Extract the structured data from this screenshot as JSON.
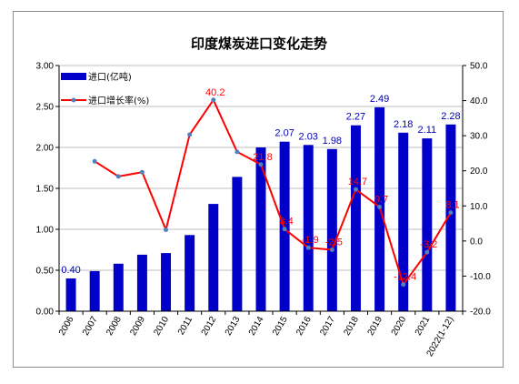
{
  "chart_data": {
    "type": "bar",
    "title": "印度煤炭进口变化走势",
    "categories": [
      "2006",
      "2007",
      "2008",
      "2009",
      "2010",
      "2011",
      "2012",
      "2013",
      "2014",
      "2015",
      "2016",
      "2017",
      "2018",
      "2019",
      "2020",
      "2021",
      "2022(1-12)"
    ],
    "series": [
      {
        "name": "进口(亿吨)",
        "type": "bar",
        "axis": "left",
        "color": "#0000c8",
        "values": [
          0.4,
          0.49,
          0.58,
          0.69,
          0.71,
          0.93,
          1.31,
          1.64,
          2.0,
          2.07,
          2.03,
          1.98,
          2.27,
          2.49,
          2.18,
          2.11,
          2.28
        ],
        "labels": [
          "0.40",
          "",
          "",
          "",
          "",
          "",
          "",
          "",
          "",
          "2.07",
          "2.03",
          "1.98",
          "2.27",
          "2.49",
          "2.18",
          "2.11",
          "2.28"
        ]
      },
      {
        "name": "进口增长率(%)",
        "type": "line",
        "axis": "right",
        "color": "#ff0000",
        "marker_color": "#4f81bd",
        "values": [
          null,
          22.7,
          18.4,
          19.6,
          3.2,
          30.3,
          40.2,
          25.4,
          21.8,
          3.4,
          -1.9,
          -2.5,
          14.7,
          9.7,
          -12.4,
          -3.2,
          8.1
        ],
        "labels": [
          "",
          "",
          "",
          "",
          "",
          "",
          "40.2",
          "",
          "21.8",
          "3.4",
          "-1.9",
          "-2.5",
          "14.7",
          "9.7",
          "-12.4",
          "-3.2",
          "8.1"
        ]
      }
    ],
    "y_left": {
      "min": 0,
      "max": 3.0,
      "step": 0.5,
      "ticks": [
        "0.00",
        "0.50",
        "1.00",
        "1.50",
        "2.00",
        "2.50",
        "3.00"
      ]
    },
    "y_right": {
      "min": -20,
      "max": 50,
      "step": 10,
      "ticks": [
        "-20.0",
        "-10.0",
        "0.0",
        "10.0",
        "20.0",
        "30.0",
        "40.0",
        "50.0"
      ]
    },
    "legend": {
      "position": "top-left"
    },
    "grid": true
  }
}
